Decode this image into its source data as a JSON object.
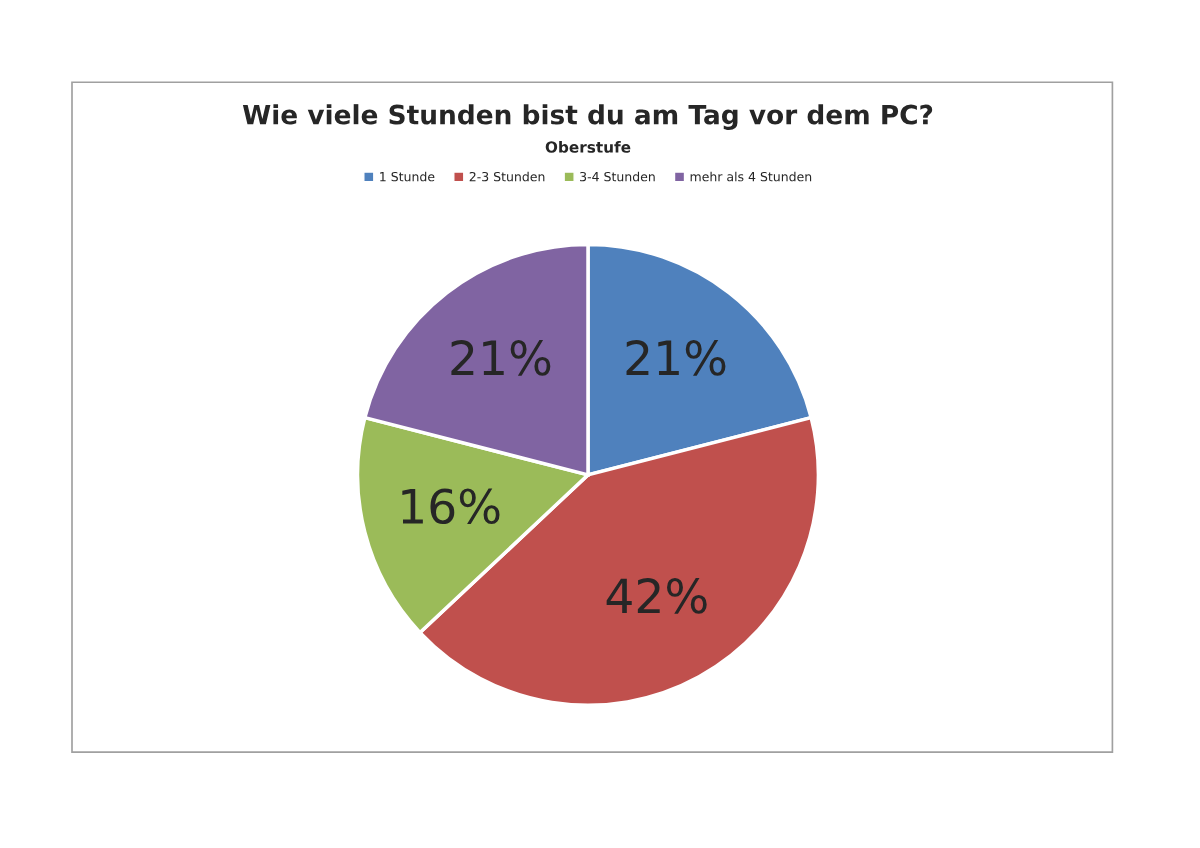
{
  "chart_data": {
    "type": "pie",
    "title": "Wie viele Stunden bist du am Tag vor dem PC?",
    "subtitle": "Oberstufe",
    "categories": [
      "1 Stunde",
      "2-3 Stunden",
      "3-4 Stunden",
      "mehr als 4 Stunden"
    ],
    "values": [
      21,
      42,
      16,
      21
    ],
    "colors": [
      "#4f81bd",
      "#c0504d",
      "#9bbb59",
      "#8064a2"
    ],
    "value_labels": [
      "21%",
      "42%",
      "16%",
      "21%"
    ],
    "legend": "top"
  }
}
